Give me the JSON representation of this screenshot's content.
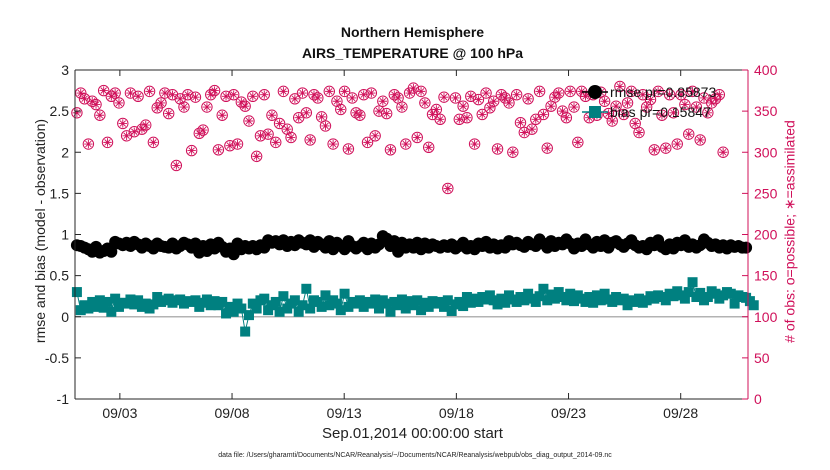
{
  "chart_data": {
    "type": "line",
    "title": "Northern Hemisphere",
    "subtitle": "AIRS_TEMPERATURE @ 100 hPa",
    "xlabel": "Sep.01,2014 00:00:00 start",
    "ylabel_left": "rmse and bias (model - observation)",
    "ylabel_right": "# of obs: o=possible; ∗=assimilated",
    "footnote": "data file: /Users/gharamti/Documents/NCAR/Reanalysis/~/Documents/NCAR/Reanalysis/webpub/obs_diag_output_2014-09.nc",
    "x_tick_labels": [
      "09/03",
      "09/08",
      "09/13",
      "09/18",
      "09/23",
      "09/28"
    ],
    "x_tick_days": [
      3,
      8,
      13,
      18,
      23,
      28
    ],
    "xlim_days": [
      1,
      31
    ],
    "ylim_left": [
      -1,
      3
    ],
    "yticks_left": [
      "-1",
      "-0.5",
      "0",
      "0.5",
      "1",
      "1.5",
      "2",
      "2.5",
      "3"
    ],
    "ylim_right": [
      0,
      400
    ],
    "yticks_right": [
      "0",
      "50",
      "100",
      "150",
      "200",
      "250",
      "300",
      "350",
      "400"
    ],
    "legend": {
      "placement": "top-right",
      "entries": [
        "rmse pr=0.85873",
        "bias pr=0.15847"
      ]
    },
    "colors": {
      "rmse": "#000000",
      "bias": "#008080",
      "obs": "#d0105a",
      "zero_line": "#b3b3b3"
    },
    "series": [
      {
        "name": "rmse pr=0.85873",
        "axis": "left",
        "marker": "circle",
        "values": [
          0.87,
          0.86,
          0.84,
          0.82,
          0.79,
          0.85,
          0.78,
          0.8,
          0.83,
          0.79,
          0.91,
          0.89,
          0.87,
          0.9,
          0.86,
          0.91,
          0.88,
          0.84,
          0.89,
          0.86,
          0.83,
          0.89,
          0.86,
          0.85,
          0.84,
          0.89,
          0.83,
          0.86,
          0.9,
          0.88,
          0.84,
          0.89,
          0.78,
          0.86,
          0.8,
          0.88,
          0.83,
          0.9,
          0.85,
          0.79,
          0.83,
          0.76,
          0.89,
          0.82,
          0.86,
          0.83,
          0.86,
          0.82,
          0.87,
          0.84,
          0.93,
          0.9,
          0.92,
          0.88,
          0.93,
          0.86,
          0.91,
          0.87,
          0.93,
          0.9,
          0.88,
          0.93,
          0.85,
          0.91,
          0.88,
          0.84,
          0.92,
          0.82,
          0.9,
          0.86,
          0.82,
          0.92,
          0.86,
          0.83,
          0.86,
          0.9,
          0.82,
          0.89,
          0.84,
          0.88,
          0.98,
          0.95,
          0.86,
          0.92,
          0.79,
          0.9,
          0.84,
          0.88,
          0.84,
          0.9,
          0.82,
          0.89,
          0.84,
          0.88,
          0.86,
          0.84,
          0.87,
          0.85,
          0.88,
          0.83,
          0.86,
          0.9,
          0.83,
          0.86,
          0.82,
          0.89,
          0.86,
          0.91,
          0.84,
          0.88,
          0.83,
          0.87,
          0.84,
          0.92,
          0.88,
          0.9,
          0.87,
          0.85,
          0.91,
          0.88,
          0.86,
          0.94,
          0.89,
          0.84,
          0.92,
          0.86,
          0.9,
          0.88,
          0.94,
          0.89,
          0.83,
          0.89,
          0.86,
          0.94,
          0.88,
          0.84,
          0.91,
          0.86,
          0.93,
          0.84,
          0.9,
          0.92,
          0.88,
          0.85,
          0.89,
          0.93,
          0.87,
          0.84,
          0.86,
          0.82,
          0.9,
          0.87,
          0.93,
          0.85,
          0.82,
          0.88,
          0.83,
          0.9,
          0.87,
          0.93,
          0.85,
          0.88,
          0.84,
          0.87,
          0.94,
          0.9,
          0.86,
          0.88,
          0.84,
          0.87,
          0.83,
          0.87,
          0.85,
          0.86,
          0.84,
          0.84
        ]
      },
      {
        "name": "bias pr=0.15847",
        "axis": "left",
        "marker": "square",
        "values": [
          0.3,
          0.08,
          0.14,
          0.1,
          0.18,
          0.12,
          0.2,
          0.11,
          0.18,
          0.06,
          0.22,
          0.12,
          0.17,
          0.16,
          0.21,
          0.15,
          0.2,
          0.12,
          0.16,
          0.1,
          0.15,
          0.24,
          0.18,
          0.2,
          0.22,
          0.17,
          0.2,
          0.21,
          0.16,
          0.19,
          0.18,
          0.2,
          0.12,
          0.17,
          0.21,
          0.14,
          0.19,
          0.14,
          0.18,
          0.04,
          0.12,
          0.06,
          0.16,
          0.1,
          -0.18,
          0.02,
          0.16,
          0.1,
          0.2,
          0.22,
          0.08,
          0.14,
          0.18,
          0.06,
          0.25,
          0.1,
          0.16,
          0.2,
          0.06,
          0.14,
          0.34,
          0.1,
          0.2,
          0.18,
          0.12,
          0.26,
          0.14,
          0.2,
          0.16,
          0.08,
          0.28,
          0.12,
          0.18,
          0.16,
          0.2,
          0.12,
          0.18,
          0.16,
          0.21,
          0.1,
          0.2,
          0.16,
          0.06,
          0.18,
          0.14,
          0.21,
          0.1,
          0.19,
          0.14,
          0.2,
          0.08,
          0.17,
          0.12,
          0.19,
          0.16,
          0.18,
          0.12,
          0.2,
          0.07,
          0.15,
          0.18,
          0.13,
          0.24,
          0.17,
          0.22,
          0.18,
          0.24,
          0.21,
          0.26,
          0.2,
          0.15,
          0.22,
          0.17,
          0.26,
          0.21,
          0.18,
          0.24,
          0.2,
          0.28,
          0.22,
          0.18,
          0.25,
          0.34,
          0.2,
          0.27,
          0.22,
          0.3,
          0.24,
          0.2,
          0.28,
          0.19,
          0.26,
          0.22,
          0.18,
          0.24,
          0.17,
          0.26,
          0.2,
          0.28,
          0.21,
          0.18,
          0.24,
          0.2,
          0.22,
          0.14,
          0.2,
          0.18,
          0.22,
          0.17,
          0.2,
          0.25,
          0.22,
          0.26,
          0.24,
          0.2,
          0.28,
          0.25,
          0.31,
          0.26,
          0.22,
          0.3,
          0.42,
          0.24,
          0.29,
          0.2,
          0.24,
          0.31,
          0.28,
          0.22,
          0.26,
          0.3,
          0.28,
          0.16,
          0.26,
          0.24,
          0.23,
          0.19,
          0.14
        ]
      },
      {
        "name": "",
        "axis": "right",
        "marker": "circle-star",
        "values": [
          348,
          372,
          365,
          310,
          362,
          358,
          345,
          375,
          312,
          368,
          372,
          360,
          335,
          320,
          372,
          325,
          368,
          328,
          333,
          374,
          312,
          354,
          360,
          372,
          347,
          370,
          284,
          365,
          355,
          370,
          302,
          367,
          323,
          327,
          355,
          370,
          375,
          303,
          345,
          368,
          308,
          370,
          310,
          361,
          356,
          338,
          368,
          295,
          320,
          370,
          322,
          345,
          312,
          335,
          374,
          328,
          318,
          365,
          342,
          372,
          348,
          315,
          370,
          366,
          343,
          332,
          374,
          310,
          362,
          352,
          374,
          304,
          366,
          348,
          345,
          370,
          312,
          372,
          320,
          350,
          362,
          347,
          303,
          370,
          366,
          355,
          310,
          372,
          378,
          318,
          374,
          360,
          306,
          346,
          352,
          340,
          367,
          256,
          186,
          366,
          340,
          356,
          342,
          368,
          310,
          364,
          346,
          372,
          354,
          362,
          304,
          370,
          366,
          360,
          300,
          370,
          336,
          324,
          365,
          328,
          340,
          374,
          346,
          305,
          356,
          367,
          372,
          350,
          342,
          374,
          355,
          312,
          374,
          368,
          342,
          370,
          345,
          373,
          362,
          347,
          338,
          356,
          380,
          346,
          360,
          374,
          335,
          324,
          370,
          355,
          364,
          303,
          374,
          345,
          305,
          370,
          348,
          310,
          370,
          358,
          322,
          374,
          355,
          315,
          366,
          348,
          360,
          365,
          370,
          300
        ]
      }
    ]
  }
}
